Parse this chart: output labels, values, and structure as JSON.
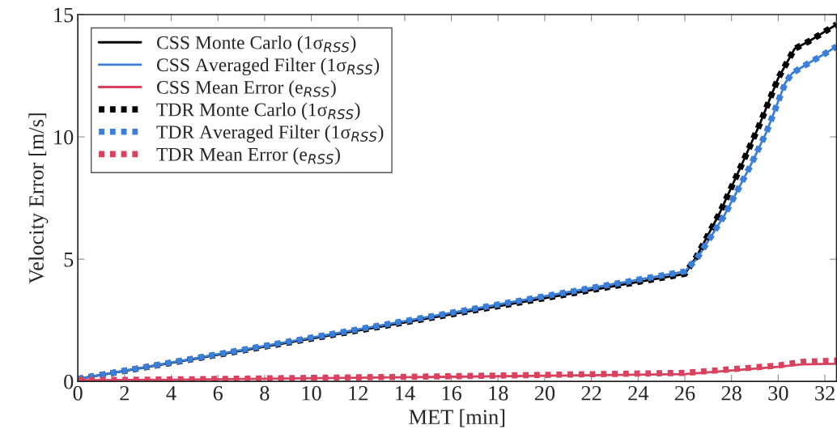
{
  "chart_data": {
    "type": "line",
    "xlabel": "MET [min]",
    "ylabel": "Velocity Error [m/s]",
    "xlim": [
      0,
      32.5
    ],
    "ylim": [
      0,
      15
    ],
    "xticks": [
      0,
      2,
      4,
      6,
      8,
      10,
      12,
      14,
      16,
      18,
      20,
      22,
      24,
      26,
      28,
      30,
      32
    ],
    "yticks": [
      0,
      5,
      10,
      15
    ],
    "grid": false,
    "legend": "top left",
    "series": [
      {
        "name": "CSS Monte Carlo (1σ$_{RSS}$)",
        "color": "#000000",
        "line_style": "solid",
        "x": [
          0,
          26,
          26.5,
          27.5,
          28.5,
          29.2,
          30,
          30.7,
          31.3,
          32.5
        ],
        "values": [
          0.1,
          4.4,
          5.1,
          6.9,
          9.0,
          10.5,
          12.4,
          13.6,
          13.9,
          14.6
        ]
      },
      {
        "name": "CSS Averaged Filter (1σ$_{RSS}$)",
        "color": "#3b7fd9",
        "line_style": "solid",
        "x": [
          0,
          26,
          26.5,
          27.7,
          28.8,
          29.5,
          30.3,
          30.6,
          31.1,
          32,
          32.5
        ],
        "values": [
          0.1,
          4.5,
          5.0,
          6.8,
          8.8,
          10.2,
          12.2,
          12.6,
          12.9,
          13.4,
          13.7
        ]
      },
      {
        "name": "CSS Mean Error (e$_{RSS}$)",
        "color": "#d9415f",
        "line_style": "solid",
        "x": [
          0,
          4,
          15,
          26,
          28,
          30,
          31,
          32.5
        ],
        "values": [
          0.05,
          0.07,
          0.18,
          0.3,
          0.45,
          0.6,
          0.7,
          0.72
        ]
      },
      {
        "name": "TDR Monte Carlo (1σ$_{RSS}$)",
        "color": "#000000",
        "line_style": "dotted",
        "x": [
          0,
          26,
          26.5,
          27.5,
          28.5,
          29.2,
          30,
          30.7,
          31.3,
          32.5
        ],
        "values": [
          0.1,
          4.4,
          5.1,
          6.9,
          9.0,
          10.5,
          12.4,
          13.6,
          13.9,
          14.6
        ]
      },
      {
        "name": "TDR Averaged Filter (1σ$_{RSS}$)",
        "color": "#3b7fd9",
        "line_style": "dotted",
        "x": [
          0,
          26,
          26.5,
          27.7,
          28.8,
          29.5,
          30.3,
          30.6,
          31.1,
          32,
          32.5
        ],
        "values": [
          0.1,
          4.5,
          5.0,
          6.8,
          8.8,
          10.2,
          12.2,
          12.6,
          12.9,
          13.4,
          13.7
        ]
      },
      {
        "name": "TDR Mean Error (e$_{RSS}$)",
        "color": "#d9415f",
        "line_style": "dotted",
        "x": [
          0,
          4,
          15,
          26,
          28,
          30,
          31,
          32.5
        ],
        "values": [
          0.05,
          0.08,
          0.2,
          0.35,
          0.5,
          0.65,
          0.8,
          0.85
        ]
      }
    ]
  }
}
